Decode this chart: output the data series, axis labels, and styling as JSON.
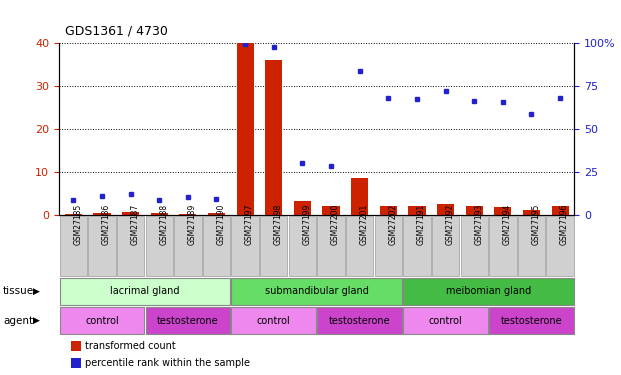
{
  "title": "GDS1361 / 4730",
  "samples": [
    "GSM27185",
    "GSM27186",
    "GSM27187",
    "GSM27188",
    "GSM27189",
    "GSM27190",
    "GSM27197",
    "GSM27198",
    "GSM27199",
    "GSM27200",
    "GSM27201",
    "GSM27202",
    "GSM27191",
    "GSM27192",
    "GSM27193",
    "GSM27194",
    "GSM27195",
    "GSM27196"
  ],
  "transformed_count": [
    0.3,
    0.5,
    0.8,
    0.4,
    0.3,
    0.4,
    40.0,
    36.0,
    3.2,
    2.2,
    8.5,
    2.0,
    2.0,
    2.5,
    2.0,
    1.8,
    1.2,
    2.2
  ],
  "percentile_rank": [
    8.5,
    11.0,
    12.0,
    8.5,
    10.5,
    9.5,
    99.5,
    97.5,
    30.5,
    28.5,
    84.0,
    68.0,
    67.5,
    72.0,
    66.5,
    65.5,
    58.5,
    68.0
  ],
  "bar_color": "#cc2200",
  "dot_color": "#2222cc",
  "left_ylim": [
    0,
    40
  ],
  "right_ylim": [
    0,
    100
  ],
  "left_yticks": [
    0,
    10,
    20,
    30,
    40
  ],
  "right_yticks": [
    0,
    25,
    50,
    75,
    100
  ],
  "right_yticklabels": [
    "0",
    "25",
    "50",
    "75",
    "100%"
  ],
  "tissue_groups": [
    {
      "label": "lacrimal gland",
      "start": 0,
      "end": 6,
      "color": "#ccffcc"
    },
    {
      "label": "submandibular gland",
      "start": 6,
      "end": 12,
      "color": "#66dd66"
    },
    {
      "label": "meibomian gland",
      "start": 12,
      "end": 18,
      "color": "#44bb44"
    }
  ],
  "agent_groups": [
    {
      "label": "control",
      "start": 0,
      "end": 3,
      "color": "#ee88ee"
    },
    {
      "label": "testosterone",
      "start": 3,
      "end": 6,
      "color": "#cc44cc"
    },
    {
      "label": "control",
      "start": 6,
      "end": 9,
      "color": "#ee88ee"
    },
    {
      "label": "testosterone",
      "start": 9,
      "end": 12,
      "color": "#cc44cc"
    },
    {
      "label": "control",
      "start": 12,
      "end": 15,
      "color": "#ee88ee"
    },
    {
      "label": "testosterone",
      "start": 15,
      "end": 18,
      "color": "#cc44cc"
    }
  ],
  "tissue_row_label": "tissue",
  "agent_row_label": "agent",
  "legend_items": [
    {
      "label": "transformed count",
      "color": "#cc2200"
    },
    {
      "label": "percentile rank within the sample",
      "color": "#2222cc"
    }
  ],
  "bg_color": "#ffffff",
  "tick_label_color_left": "#cc2200",
  "tick_label_color_right": "#2222cc",
  "xticklabel_bg": "#d0d0d0"
}
